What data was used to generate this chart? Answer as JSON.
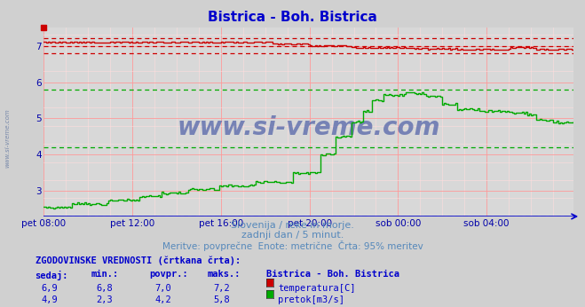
{
  "title": "Bistrica - Boh. Bistrica",
  "title_color": "#0000cc",
  "background_color": "#d0d0d0",
  "plot_bg_color": "#d8d8d8",
  "xlabel_ticks": [
    "pet 08:00",
    "pet 12:00",
    "pet 16:00",
    "pet 20:00",
    "sob 00:00",
    "sob 04:00"
  ],
  "yticks": [
    3,
    4,
    5,
    6,
    7
  ],
  "ylim": [
    2.3,
    7.5
  ],
  "subtitle1": "Slovenija / reke in morje.",
  "subtitle2": "zadnji dan / 5 minut.",
  "subtitle3": "Meritve: povprečne  Enote: metrične  Črta: 95% meritev",
  "subtitle_color": "#5588bb",
  "watermark": "www.si-vreme.com",
  "watermark_color": "#5566aa",
  "side_text": "www.si-vreme.com",
  "legend_title": "ZGODOVINSKE VREDNOSTI (črtkana črta):",
  "legend_headers": [
    "sedaj:",
    "min.:",
    "povpr.:",
    "maks.:",
    "Bistrica - Boh. Bistrica"
  ],
  "temp_row": [
    "6,9",
    "6,8",
    "7,0",
    "7,2",
    "temperatura[C]"
  ],
  "flow_row": [
    "4,9",
    "2,3",
    "4,2",
    "5,8",
    "pretok[m3/s]"
  ],
  "temp_color": "#cc0000",
  "flow_color": "#00aa00",
  "grid_color_major": "#ff9999",
  "grid_color_minor": "#ffdddd",
  "axis_color": "#0000cc",
  "tick_label_color": "#0000aa",
  "n_points": 288,
  "temp_min_line": 6.8,
  "temp_avg_line": 7.0,
  "temp_max_line": 7.2,
  "flow_min_line": 2.3,
  "flow_avg_line": 4.2,
  "flow_max_line": 5.8
}
